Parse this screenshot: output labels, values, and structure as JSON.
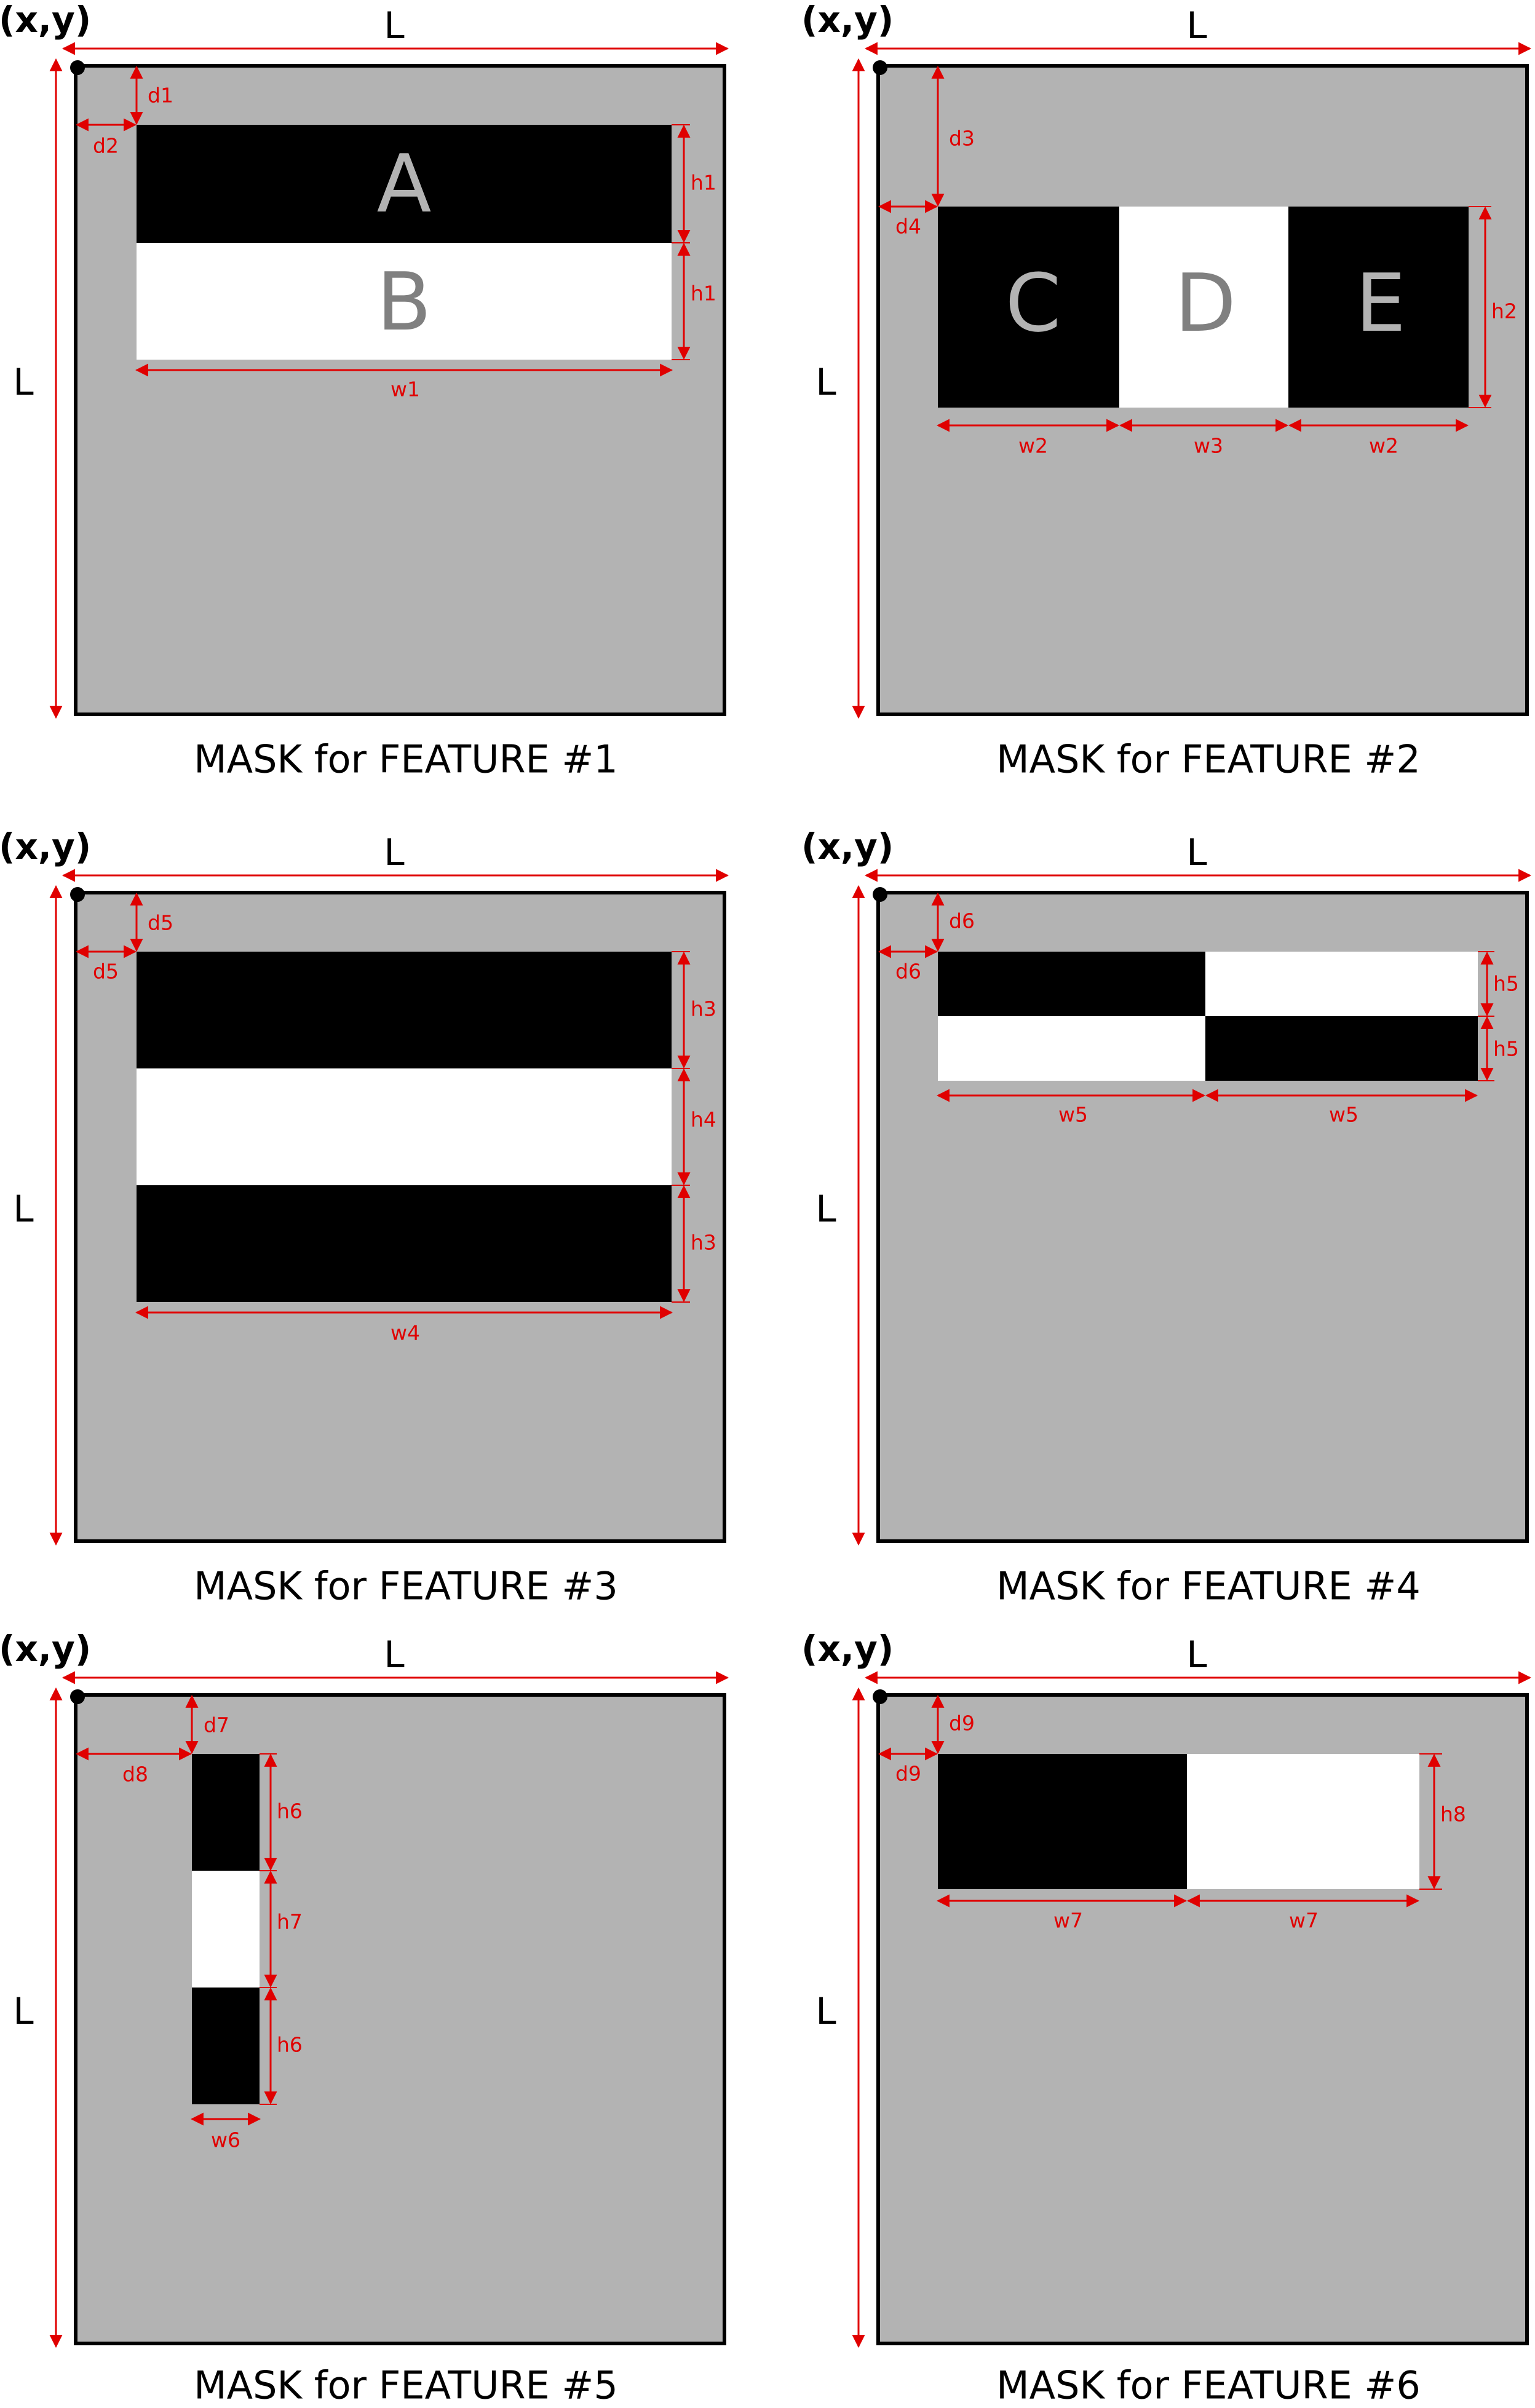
{
  "colors": {
    "mask_fill": "#b3b3b3",
    "mask_border": "#000000",
    "dimension": "#e00000",
    "letter_on_black": "#b3b3b3",
    "letter_on_white": "#808080"
  },
  "origin_label": "(x,y)",
  "side_label": "L",
  "masks": [
    {
      "caption": "MASK for FEATURE #1",
      "letters": [
        "A",
        "B"
      ],
      "labels": {
        "top": "d1",
        "left": "d2",
        "height_a": "h1",
        "height_b": "h1",
        "width": "w1"
      }
    },
    {
      "caption": "MASK for FEATURE #2",
      "letters": [
        "C",
        "D",
        "E"
      ],
      "labels": {
        "top": "d3",
        "left": "d4",
        "height": "h2",
        "width_c": "w2",
        "width_d": "w3",
        "width_e": "w2"
      }
    },
    {
      "caption": "MASK for FEATURE #3",
      "labels": {
        "top": "d5",
        "left": "d5",
        "height_1": "h3",
        "height_2": "h4",
        "height_3": "h3",
        "width": "w4"
      }
    },
    {
      "caption": "MASK for FEATURE #4",
      "labels": {
        "top": "d6",
        "left": "d6",
        "height_1": "h5",
        "height_2": "h5",
        "width_1": "w5",
        "width_2": "w5"
      }
    },
    {
      "caption": "MASK for FEATURE #5",
      "labels": {
        "top": "d7",
        "left": "d8",
        "height_1": "h6",
        "height_2": "h7",
        "height_3": "h6",
        "width": "w6"
      }
    },
    {
      "caption": "MASK for FEATURE #6",
      "labels": {
        "top": "d9",
        "left": "d9",
        "height": "h8",
        "width_1": "w7",
        "width_2": "w7"
      }
    }
  ]
}
